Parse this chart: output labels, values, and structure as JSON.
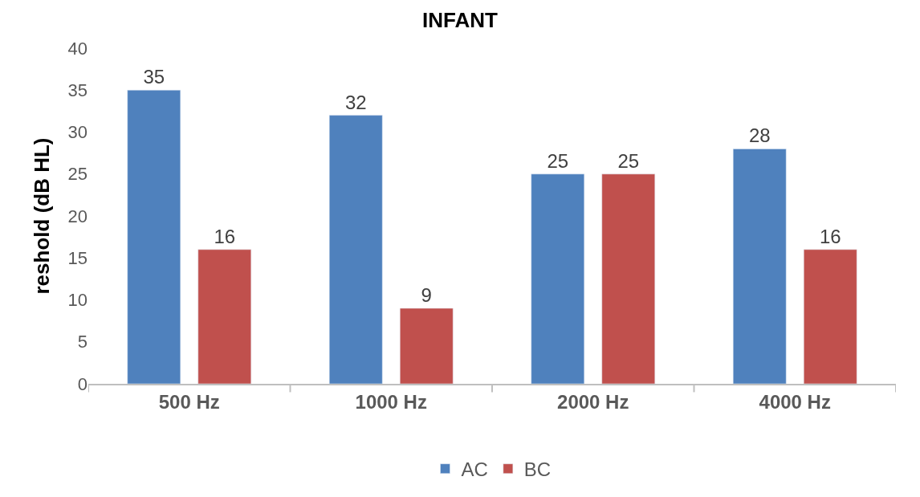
{
  "chart_data": {
    "type": "bar",
    "title": "INFANT",
    "ylabel": "reshold (dB HL)",
    "categories": [
      "500 Hz",
      "1000 Hz",
      "2000 Hz",
      "4000 Hz"
    ],
    "series": [
      {
        "name": "AC",
        "color": "#4f81bd",
        "values": [
          35,
          32,
          25,
          28
        ]
      },
      {
        "name": "BC",
        "color": "#c0504d",
        "values": [
          16,
          9,
          25,
          16
        ]
      }
    ],
    "ylim": [
      0,
      40
    ],
    "yticks": [
      0,
      5,
      10,
      15,
      20,
      25,
      30,
      35,
      40
    ],
    "data_labels": true,
    "legend": "bottom"
  }
}
